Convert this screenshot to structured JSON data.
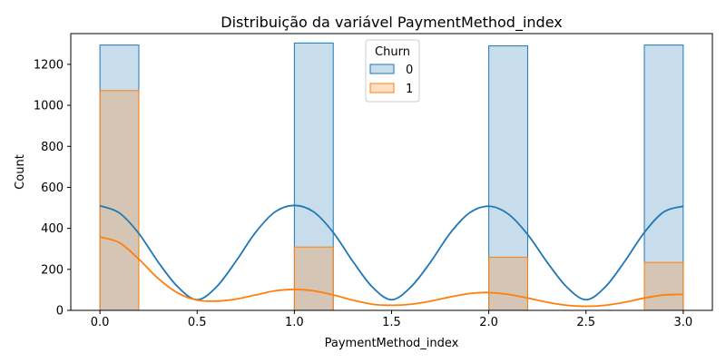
{
  "chart_data": {
    "type": "histogram",
    "title": "Distribuição da variável PaymentMethod_index",
    "xlabel": "PaymentMethod_index",
    "ylabel": "Count",
    "xlim": [
      -0.15,
      3.15
    ],
    "ylim": [
      0,
      1350
    ],
    "xticks": [
      "0.0",
      "0.5",
      "1.0",
      "1.5",
      "2.0",
      "2.5",
      "3.0"
    ],
    "yticks": [
      "0",
      "200",
      "400",
      "600",
      "800",
      "1000",
      "1200"
    ],
    "bin_edges": [
      0.0,
      0.2,
      0.8,
      1.0,
      1.2,
      1.8,
      2.0,
      2.2,
      2.8,
      3.0
    ],
    "legend": {
      "title": "Churn",
      "position": "top-center"
    },
    "grid": false,
    "series": [
      {
        "name": "0",
        "color": "#1f77b4",
        "fill": "#c6dbed",
        "bins": [
          {
            "x0": 0.0,
            "x1": 0.2,
            "count": 1294
          },
          {
            "x0": 1.0,
            "x1": 1.2,
            "count": 1304
          },
          {
            "x0": 2.0,
            "x1": 2.2,
            "count": 1290
          },
          {
            "x0": 2.8,
            "x1": 3.0,
            "count": 1294
          }
        ],
        "kde": {
          "x": [
            0.0,
            0.1,
            0.2,
            0.3,
            0.4,
            0.5,
            0.6,
            0.7,
            0.8,
            0.9,
            1.0,
            1.1,
            1.2,
            1.3,
            1.4,
            1.5,
            1.6,
            1.7,
            1.8,
            1.9,
            2.0,
            2.1,
            2.2,
            2.3,
            2.4,
            2.5,
            2.6,
            2.7,
            2.8,
            2.9,
            3.0
          ],
          "y": [
            510,
            475,
            375,
            235,
            115,
            52,
            115,
            240,
            380,
            480,
            512,
            480,
            380,
            240,
            115,
            52,
            115,
            235,
            375,
            475,
            508,
            470,
            370,
            235,
            115,
            52,
            115,
            240,
            380,
            480,
            508
          ]
        }
      },
      {
        "name": "1",
        "color": "#ff7f0e",
        "fill": "#ffd3b0",
        "bins": [
          {
            "x0": 0.0,
            "x1": 0.2,
            "count": 1072
          },
          {
            "x0": 1.0,
            "x1": 1.2,
            "count": 309
          },
          {
            "x0": 2.0,
            "x1": 2.2,
            "count": 259
          },
          {
            "x0": 2.8,
            "x1": 3.0,
            "count": 234
          }
        ],
        "kde": {
          "x": [
            0.0,
            0.1,
            0.2,
            0.3,
            0.4,
            0.5,
            0.6,
            0.7,
            0.8,
            0.9,
            1.0,
            1.1,
            1.2,
            1.3,
            1.4,
            1.5,
            1.6,
            1.7,
            1.8,
            1.9,
            2.0,
            2.1,
            2.2,
            2.3,
            2.4,
            2.5,
            2.6,
            2.7,
            2.8,
            2.9,
            3.0
          ],
          "y": [
            358,
            330,
            250,
            155,
            85,
            50,
            45,
            55,
            75,
            95,
            102,
            95,
            75,
            50,
            30,
            25,
            30,
            45,
            65,
            82,
            87,
            78,
            60,
            40,
            25,
            20,
            25,
            40,
            60,
            75,
            78
          ]
        }
      }
    ]
  }
}
